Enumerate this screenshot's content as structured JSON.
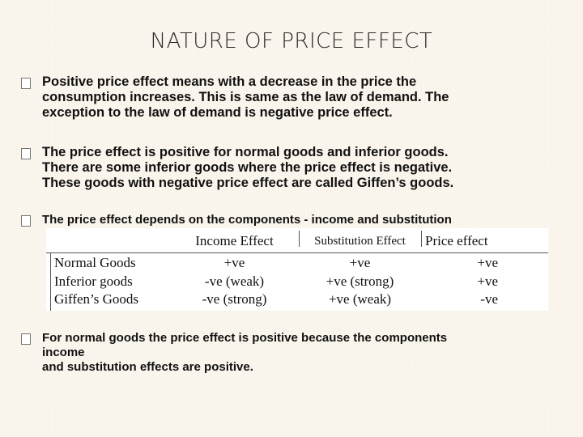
{
  "slide": {
    "title": "NATURE OF PRICE EFFECT",
    "bullet_icon": "square-bullet-icon",
    "bullets": [
      {
        "lines": [
          "Positive price effect means with a decrease in the price the",
          "consumption increases. This is same as the law of demand. The",
          "exception to the law of demand is negative price effect."
        ]
      },
      {
        "lines": [
          "The price effect is positive for normal goods and inferior goods.",
          "There are some inferior goods where the price effect is negative.",
          "These goods with negative price effect are called Giffen’s goods."
        ]
      },
      {
        "lines": [
          "The price effect depends on the components - income and substitution"
        ]
      },
      {
        "lines": [
          "For normal goods the price effect is positive because the components",
          "income",
          "and substitution effects are positive."
        ]
      }
    ]
  },
  "effects_table": {
    "headers": [
      "",
      "Income Effect",
      "Substitution Effect",
      "Price effect"
    ],
    "rows": [
      [
        "Normal Goods",
        "+ve",
        "+ve",
        "+ve"
      ],
      [
        "Inferior goods",
        "-ve (weak)",
        "+ve (strong)",
        "+ve"
      ],
      [
        "Giffen’s Goods",
        "-ve (strong)",
        "+ve (weak)",
        "-ve"
      ]
    ]
  }
}
